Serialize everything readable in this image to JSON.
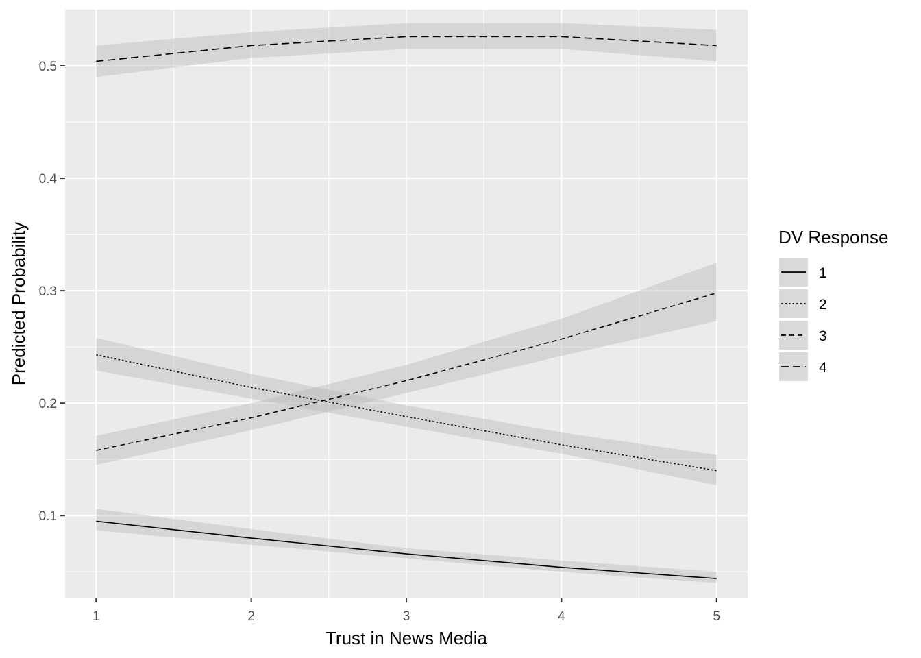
{
  "chart_data": {
    "type": "line",
    "title": "",
    "xlabel": "Trust in News Media",
    "ylabel": "Predicted Probability",
    "x": [
      1,
      2,
      3,
      4,
      5
    ],
    "xlim": [
      0.8,
      5.2
    ],
    "ylim": [
      0.027,
      0.55
    ],
    "x_ticks": [
      1,
      2,
      3,
      4,
      5
    ],
    "y_ticks": [
      0.1,
      0.2,
      0.3,
      0.4,
      0.5
    ],
    "y_tick_labels": [
      "0.1",
      "0.2",
      "0.3",
      "0.4",
      "0.5"
    ],
    "grid": true,
    "legend": {
      "title": "DV Response",
      "position": "right"
    },
    "colors": {
      "panel": "#ebebeb",
      "grid": "#ffffff",
      "ribbon": "#d9d9d9",
      "line": "#000000",
      "legend_key": "#d9d9d9"
    },
    "series": [
      {
        "name": "1",
        "linetype": "solid",
        "values": [
          0.095,
          0.08,
          0.066,
          0.054,
          0.044
        ],
        "lower": [
          0.087,
          0.074,
          0.062,
          0.05,
          0.04
        ],
        "upper": [
          0.106,
          0.088,
          0.071,
          0.06,
          0.05
        ]
      },
      {
        "name": "2",
        "linetype": "dotted",
        "values": [
          0.243,
          0.214,
          0.188,
          0.163,
          0.14
        ],
        "lower": [
          0.229,
          0.204,
          0.179,
          0.155,
          0.127
        ],
        "upper": [
          0.258,
          0.226,
          0.198,
          0.174,
          0.154
        ]
      },
      {
        "name": "3",
        "linetype": "dashed",
        "values": [
          0.158,
          0.187,
          0.22,
          0.257,
          0.298
        ],
        "lower": [
          0.145,
          0.176,
          0.209,
          0.242,
          0.273
        ],
        "upper": [
          0.171,
          0.2,
          0.234,
          0.275,
          0.325
        ]
      },
      {
        "name": "4",
        "linetype": "longdash",
        "values": [
          0.504,
          0.518,
          0.526,
          0.526,
          0.518
        ],
        "lower": [
          0.49,
          0.507,
          0.515,
          0.515,
          0.504
        ],
        "upper": [
          0.518,
          0.53,
          0.538,
          0.538,
          0.532
        ]
      }
    ]
  }
}
